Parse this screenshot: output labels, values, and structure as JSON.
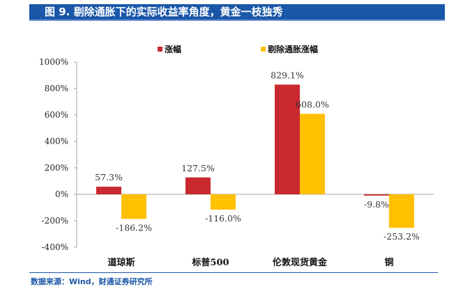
{
  "header": {
    "title": "图 9. 剔除通胀下的实际收益率角度，黄金一枝独秀"
  },
  "footer": {
    "source": "数据来源：Wind，财通证券研究所"
  },
  "chart_data": {
    "type": "bar",
    "categories": [
      "道琼斯",
      "标普500",
      "伦敦现货黄金",
      "铜"
    ],
    "series": [
      {
        "name": "涨幅",
        "color": "#c8282e",
        "values": [
          57.3,
          127.5,
          829.1,
          -9.8
        ]
      },
      {
        "name": "剔除通胀涨幅",
        "color": "#ffc000",
        "values": [
          -186.2,
          -116.0,
          608.0,
          -253.2
        ]
      }
    ],
    "data_labels": [
      [
        "57.3%",
        "127.5%",
        "829.1%",
        "-9.8%"
      ],
      [
        "-186.2%",
        "-116.0%",
        "608.0%",
        "-253.2%"
      ]
    ],
    "ylim": [
      -400,
      1000
    ],
    "yticks": [
      -400,
      -200,
      0,
      200,
      400,
      600,
      800,
      1000
    ],
    "ytick_labels": [
      "-400%",
      "-200%",
      "0%",
      "200%",
      "400%",
      "600%",
      "800%",
      "1000%"
    ],
    "legend_position": "top-center",
    "grid": false
  }
}
